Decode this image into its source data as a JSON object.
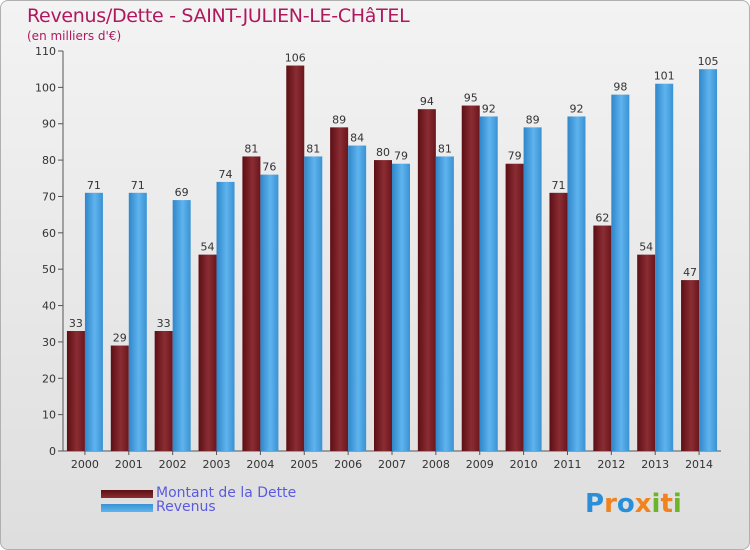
{
  "title": "Revenus/Dette - SAINT-JULIEN-LE-CHâTEL",
  "subtitle": "(en milliers d'€)",
  "colors": {
    "dette": "#7a1f24",
    "revenus": "#4aa3e2",
    "title": "#b0185e",
    "legend_text": "#5a5ae0"
  },
  "legend": [
    {
      "label": "Montant de la Dette",
      "color": "#7a1f24"
    },
    {
      "label": "Revenus",
      "color": "#4aa3e2"
    }
  ],
  "logo": {
    "letters": [
      "P",
      "r",
      "o",
      "x",
      "i",
      "t",
      "i"
    ],
    "colors": [
      "#2a8fd8",
      "#f0831e",
      "#2a8fd8",
      "#f0831e",
      "#6ab52a",
      "#f0831e",
      "#6ab52a"
    ]
  },
  "chart_data": {
    "type": "bar",
    "categories": [
      "2000",
      "2001",
      "2002",
      "2003",
      "2004",
      "2005",
      "2006",
      "2007",
      "2008",
      "2009",
      "2010",
      "2011",
      "2012",
      "2013",
      "2014"
    ],
    "series": [
      {
        "name": "Montant de la Dette",
        "values": [
          33,
          29,
          33,
          54,
          81,
          106,
          89,
          80,
          94,
          95,
          79,
          71,
          62,
          54,
          47
        ]
      },
      {
        "name": "Revenus",
        "values": [
          71,
          71,
          69,
          74,
          76,
          81,
          84,
          79,
          81,
          92,
          89,
          92,
          98,
          101,
          105
        ]
      }
    ],
    "ylim": [
      0,
      110
    ],
    "yticks": [
      0,
      10,
      20,
      30,
      40,
      50,
      60,
      70,
      80,
      90,
      100,
      110
    ],
    "grid": false
  }
}
